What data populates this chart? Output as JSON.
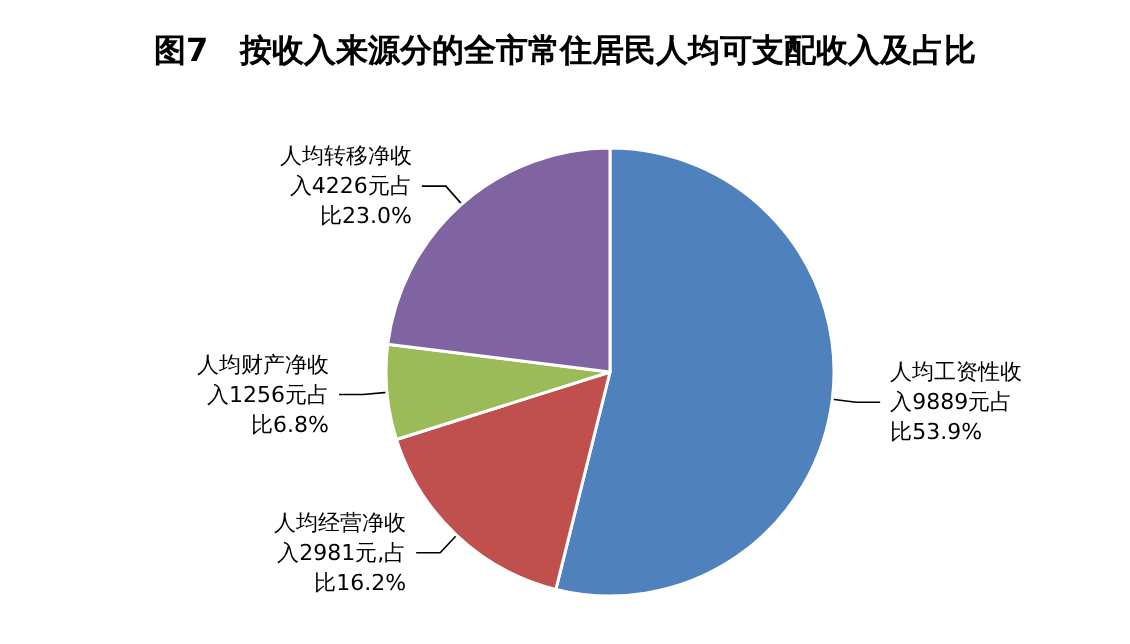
{
  "chart_data": {
    "type": "pie",
    "title": "图7　按收入来源分的全市常住居民人均可支配收入及占比",
    "categories": [
      "人均工资性收入9889元占比53.9%",
      "人均经营净收入2981元,占比16.2%",
      "人均财产净收入1256元占比6.8%",
      "人均转移净收入4226元占比23.0%"
    ],
    "values": [
      9889,
      2981,
      1256,
      4226
    ],
    "colors": [
      "#4f81bd",
      "#c0504d",
      "#9bbb59",
      "#8064a2"
    ],
    "legend": false
  }
}
